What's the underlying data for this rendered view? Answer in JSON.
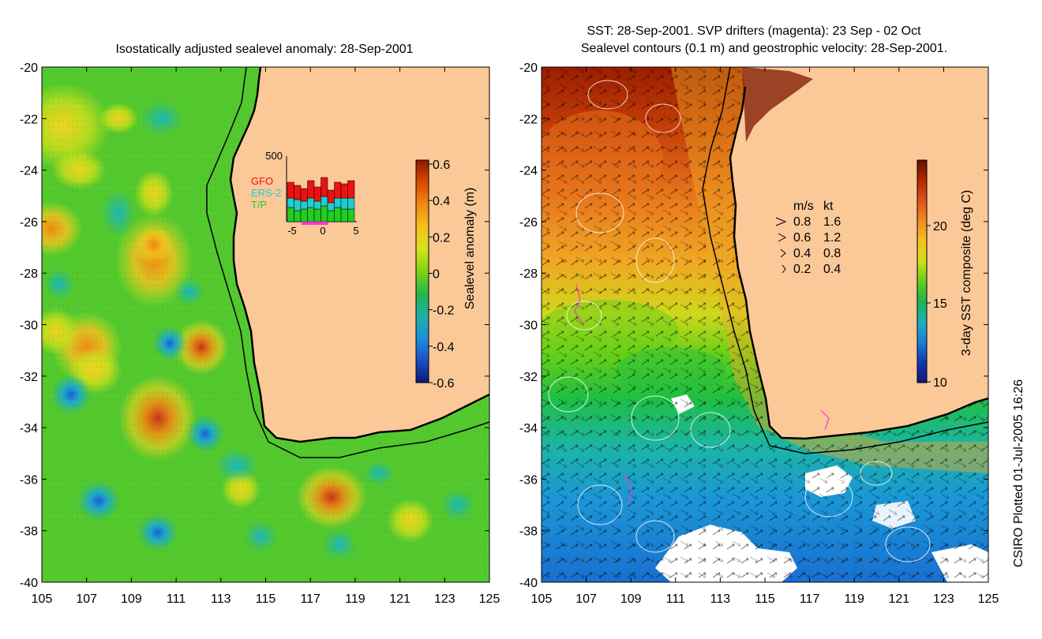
{
  "left_panel": {
    "title": "Isostatically adjusted sealevel anomaly: 28-Sep-2001",
    "colorbar": {
      "label": "Sealevel anomaly (m)",
      "ticks": [
        "0.6",
        "0.4",
        "0.2",
        "0",
        "-0.2",
        "-0.4",
        "-0.6"
      ],
      "colors": [
        "#8b1a00",
        "#d94a00",
        "#f28a10",
        "#f2c21f",
        "#d8e21c",
        "#7fd414",
        "#22b84a",
        "#1fb0a6",
        "#1a8fd9",
        "#1d4fc4",
        "#0a1a7a"
      ]
    },
    "inset": {
      "ymax_label": "500",
      "x_ticks": [
        "-5",
        "0",
        "5"
      ],
      "legend": [
        {
          "name": "GFO",
          "color": "#ee1111"
        },
        {
          "name": "ERS-2",
          "color": "#22cccc"
        },
        {
          "name": "T/P",
          "color": "#22cc22"
        }
      ]
    }
  },
  "right_panel": {
    "title_line1": "SST: 28-Sep-2001. SVP drifters (magenta): 23 Sep - 02 Oct",
    "title_line2": "Sealevel contours (0.1 m) and geostrophic velocity: 28-Sep-2001.",
    "colorbar": {
      "label": "3-day SST composite (deg C)",
      "ticks": [
        "20",
        "15",
        "10"
      ],
      "colors": [
        "#6b0e00",
        "#b32a00",
        "#e0541a",
        "#f08c24",
        "#f2c21f",
        "#cfe01c",
        "#63cf19",
        "#20b454",
        "#1cb0b8",
        "#1a7fd9",
        "#1536b5",
        "#0a1a7a"
      ]
    },
    "velocity_key": {
      "header_ms": "m/s",
      "header_kt": "kt",
      "rows": [
        {
          "ms": "0.8",
          "kt": "1.6"
        },
        {
          "ms": "0.6",
          "kt": "1.2"
        },
        {
          "ms": "0.4",
          "kt": "0.8"
        },
        {
          "ms": "0.2",
          "kt": "0.4"
        }
      ]
    }
  },
  "axes": {
    "lat_labels": [
      "-20",
      "-22",
      "-24",
      "-26",
      "-28",
      "-30",
      "-32",
      "-34",
      "-36",
      "-38",
      "-40"
    ],
    "lon_labels": [
      "105",
      "107",
      "109",
      "111",
      "113",
      "115",
      "117",
      "119",
      "121",
      "123",
      "125"
    ]
  },
  "map_colors": {
    "land": "#fbc898",
    "coastline": "#000000"
  },
  "credit": "CSIRO Plotted 01-Jul-2005 16:26"
}
